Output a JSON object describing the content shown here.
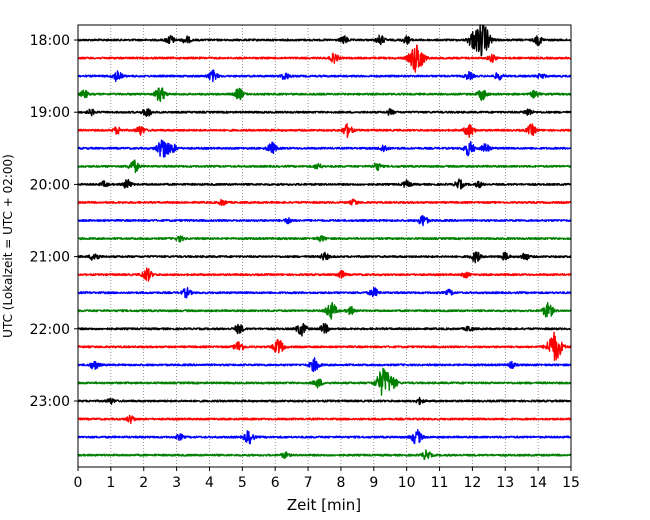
{
  "chart_data": {
    "type": "line",
    "title": "",
    "xlabel": "Zeit  [min]",
    "ylabel": "UTC (Lokalzeit = UTC + 02:00)",
    "xlim": [
      0,
      15
    ],
    "x_ticks": [
      "0",
      "1",
      "2",
      "3",
      "4",
      "5",
      "6",
      "7",
      "8",
      "9",
      "10",
      "11",
      "12",
      "13",
      "14",
      "15"
    ],
    "y_ticks": [
      "18:00",
      "19:00",
      "20:00",
      "21:00",
      "22:00",
      "23:00"
    ],
    "grid": "vertical dotted",
    "colors": [
      "#000000",
      "#ff0000",
      "#0000ff",
      "#008000"
    ],
    "traces": [
      {
        "start": "18:00",
        "color": "#000000",
        "events": [
          [
            2.8,
            0.5
          ],
          [
            3.3,
            0.4
          ],
          [
            8.1,
            0.4
          ],
          [
            9.2,
            0.5
          ],
          [
            10.0,
            0.4
          ],
          [
            12.0,
            0.7
          ],
          [
            12.3,
            1.8
          ],
          [
            14.0,
            0.5
          ]
        ]
      },
      {
        "start": "18:15",
        "color": "#ff0000",
        "events": [
          [
            7.8,
            0.5
          ],
          [
            10.3,
            1.6
          ],
          [
            12.6,
            0.4
          ]
        ]
      },
      {
        "start": "18:30",
        "color": "#0000ff",
        "events": [
          [
            1.2,
            0.6
          ],
          [
            4.1,
            0.6
          ],
          [
            6.3,
            0.4
          ],
          [
            11.9,
            0.4
          ],
          [
            12.8,
            0.4
          ],
          [
            14.1,
            0.3
          ]
        ]
      },
      {
        "start": "18:45",
        "color": "#008000",
        "events": [
          [
            0.2,
            0.4
          ],
          [
            2.5,
            0.8
          ],
          [
            4.9,
            0.6
          ],
          [
            12.3,
            0.6
          ],
          [
            13.9,
            0.4
          ]
        ]
      },
      {
        "start": "19:00",
        "color": "#000000",
        "events": [
          [
            0.4,
            0.3
          ],
          [
            2.1,
            0.5
          ],
          [
            9.5,
            0.3
          ],
          [
            13.7,
            0.4
          ]
        ]
      },
      {
        "start": "19:15",
        "color": "#ff0000",
        "events": [
          [
            1.2,
            0.4
          ],
          [
            1.9,
            0.5
          ],
          [
            8.2,
            0.7
          ],
          [
            11.9,
            0.7
          ],
          [
            13.8,
            0.6
          ]
        ]
      },
      {
        "start": "19:30",
        "color": "#0000ff",
        "events": [
          [
            2.6,
            1.2
          ],
          [
            2.9,
            0.4
          ],
          [
            5.9,
            0.6
          ],
          [
            9.3,
            0.4
          ],
          [
            11.9,
            0.8
          ],
          [
            12.4,
            0.5
          ]
        ]
      },
      {
        "start": "19:45",
        "color": "#008000",
        "events": [
          [
            1.7,
            0.7
          ],
          [
            7.3,
            0.3
          ],
          [
            9.1,
            0.4
          ]
        ]
      },
      {
        "start": "20:00",
        "color": "#000000",
        "events": [
          [
            0.8,
            0.3
          ],
          [
            1.5,
            0.5
          ],
          [
            10.0,
            0.4
          ],
          [
            11.6,
            0.5
          ],
          [
            12.2,
            0.3
          ]
        ]
      },
      {
        "start": "20:15",
        "color": "#ff0000",
        "events": [
          [
            4.4,
            0.3
          ],
          [
            8.4,
            0.3
          ]
        ]
      },
      {
        "start": "20:30",
        "color": "#0000ff",
        "events": [
          [
            6.4,
            0.3
          ],
          [
            10.5,
            0.6
          ]
        ]
      },
      {
        "start": "20:45",
        "color": "#008000",
        "events": [
          [
            3.1,
            0.3
          ],
          [
            7.4,
            0.3
          ]
        ]
      },
      {
        "start": "21:00",
        "color": "#000000",
        "events": [
          [
            0.5,
            0.5
          ],
          [
            7.5,
            0.4
          ],
          [
            12.1,
            0.6
          ],
          [
            13.0,
            0.4
          ],
          [
            13.6,
            0.4
          ]
        ]
      },
      {
        "start": "21:15",
        "color": "#ff0000",
        "events": [
          [
            2.1,
            0.7
          ],
          [
            8.0,
            0.4
          ],
          [
            11.8,
            0.3
          ]
        ]
      },
      {
        "start": "21:30",
        "color": "#0000ff",
        "events": [
          [
            3.3,
            0.5
          ],
          [
            9.0,
            0.5
          ],
          [
            11.3,
            0.3
          ]
        ]
      },
      {
        "start": "21:45",
        "color": "#008000",
        "events": [
          [
            7.7,
            0.9
          ],
          [
            8.3,
            0.4
          ],
          [
            14.3,
            0.8
          ]
        ]
      },
      {
        "start": "22:00",
        "color": "#000000",
        "events": [
          [
            4.9,
            0.5
          ],
          [
            6.8,
            0.7
          ],
          [
            7.5,
            0.5
          ],
          [
            11.9,
            0.3
          ]
        ]
      },
      {
        "start": "22:15",
        "color": "#ff0000",
        "events": [
          [
            4.9,
            0.6
          ],
          [
            6.1,
            0.8
          ],
          [
            14.5,
            1.6
          ]
        ]
      },
      {
        "start": "22:30",
        "color": "#0000ff",
        "events": [
          [
            0.5,
            0.5
          ],
          [
            7.2,
            0.7
          ],
          [
            13.2,
            0.3
          ]
        ]
      },
      {
        "start": "22:45",
        "color": "#008000",
        "events": [
          [
            7.3,
            0.5
          ],
          [
            9.3,
            1.6
          ],
          [
            9.6,
            0.5
          ]
        ]
      },
      {
        "start": "23:00",
        "color": "#000000",
        "events": [
          [
            1.0,
            0.3
          ],
          [
            10.4,
            0.3
          ]
        ]
      },
      {
        "start": "23:15",
        "color": "#ff0000",
        "events": [
          [
            1.6,
            0.4
          ]
        ]
      },
      {
        "start": "23:30",
        "color": "#0000ff",
        "events": [
          [
            3.1,
            0.3
          ],
          [
            5.2,
            0.7
          ],
          [
            10.3,
            0.8
          ]
        ]
      },
      {
        "start": "23:45",
        "color": "#008000",
        "events": [
          [
            6.3,
            0.3
          ],
          [
            10.6,
            0.5
          ]
        ]
      }
    ]
  }
}
